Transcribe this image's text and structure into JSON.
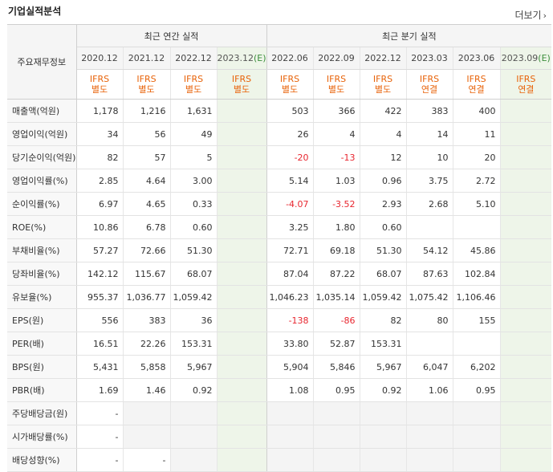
{
  "title": "기업실적분석",
  "more_label": "더보기",
  "stub_label": "주요재무정보",
  "groups": {
    "annual": "최근 연간 실적",
    "quarterly": "최근 분기 실적"
  },
  "periods": [
    {
      "label": "2020.12",
      "est": false,
      "ifrs": "IFRS",
      "kind": "별도"
    },
    {
      "label": "2021.12",
      "est": false,
      "ifrs": "IFRS",
      "kind": "별도"
    },
    {
      "label": "2022.12",
      "est": false,
      "ifrs": "IFRS",
      "kind": "별도"
    },
    {
      "label": "2023.12",
      "est": true,
      "ifrs": "IFRS",
      "kind": "별도"
    },
    {
      "label": "2022.06",
      "est": false,
      "ifrs": "IFRS",
      "kind": "별도"
    },
    {
      "label": "2022.09",
      "est": false,
      "ifrs": "IFRS",
      "kind": "별도"
    },
    {
      "label": "2022.12",
      "est": false,
      "ifrs": "IFRS",
      "kind": "별도"
    },
    {
      "label": "2023.03",
      "est": false,
      "ifrs": "IFRS",
      "kind": "연결"
    },
    {
      "label": "2023.06",
      "est": false,
      "ifrs": "IFRS",
      "kind": "연결"
    },
    {
      "label": "2023.09",
      "est": true,
      "ifrs": "IFRS",
      "kind": "연결"
    }
  ],
  "est_mark": "(E)",
  "rows": [
    {
      "label": "매출액(억원)",
      "values": [
        "1,178",
        "1,216",
        "1,631",
        "",
        "503",
        "366",
        "422",
        "383",
        "400",
        ""
      ]
    },
    {
      "label": "영업이익(억원)",
      "values": [
        "34",
        "56",
        "49",
        "",
        "26",
        "4",
        "4",
        "14",
        "11",
        ""
      ]
    },
    {
      "label": "당기순이익(억원)",
      "values": [
        "82",
        "57",
        "5",
        "",
        "-20",
        "-13",
        "12",
        "10",
        "20",
        ""
      ]
    },
    {
      "label": "영업이익률(%)",
      "values": [
        "2.85",
        "4.64",
        "3.00",
        "",
        "5.14",
        "1.03",
        "0.96",
        "3.75",
        "2.72",
        ""
      ]
    },
    {
      "label": "순이익률(%)",
      "values": [
        "6.97",
        "4.65",
        "0.33",
        "",
        "-4.07",
        "-3.52",
        "2.93",
        "2.68",
        "5.10",
        ""
      ]
    },
    {
      "label": "ROE(%)",
      "values": [
        "10.86",
        "6.78",
        "0.60",
        "",
        "3.25",
        "1.80",
        "0.60",
        "",
        "",
        ""
      ]
    },
    {
      "label": "부채비율(%)",
      "values": [
        "57.27",
        "72.66",
        "51.30",
        "",
        "72.71",
        "69.18",
        "51.30",
        "54.12",
        "45.86",
        ""
      ]
    },
    {
      "label": "당좌비율(%)",
      "values": [
        "142.12",
        "115.67",
        "68.07",
        "",
        "87.04",
        "87.22",
        "68.07",
        "87.63",
        "102.84",
        ""
      ]
    },
    {
      "label": "유보율(%)",
      "values": [
        "955.37",
        "1,036.77",
        "1,059.42",
        "",
        "1,046.23",
        "1,035.14",
        "1,059.42",
        "1,075.42",
        "1,106.46",
        ""
      ]
    },
    {
      "label": "EPS(원)",
      "values": [
        "556",
        "383",
        "36",
        "",
        "-138",
        "-86",
        "82",
        "80",
        "155",
        ""
      ]
    },
    {
      "label": "PER(배)",
      "values": [
        "16.51",
        "22.26",
        "153.31",
        "",
        "33.80",
        "52.87",
        "153.31",
        "",
        "",
        ""
      ]
    },
    {
      "label": "BPS(원)",
      "values": [
        "5,431",
        "5,858",
        "5,967",
        "",
        "5,904",
        "5,846",
        "5,967",
        "6,047",
        "6,202",
        ""
      ]
    },
    {
      "label": "PBR(배)",
      "values": [
        "1.69",
        "1.46",
        "0.92",
        "",
        "1.08",
        "0.95",
        "0.92",
        "1.06",
        "0.95",
        ""
      ]
    },
    {
      "label": "주당배당금(원)",
      "values": [
        "-",
        null,
        null,
        null,
        null,
        null,
        null,
        null,
        null,
        null
      ]
    },
    {
      "label": "시가배당률(%)",
      "values": [
        "-",
        null,
        null,
        null,
        null,
        null,
        null,
        null,
        null,
        null
      ]
    },
    {
      "label": "배당성향(%)",
      "values": [
        "-",
        "-",
        null,
        null,
        null,
        null,
        null,
        null,
        null,
        null
      ]
    }
  ]
}
